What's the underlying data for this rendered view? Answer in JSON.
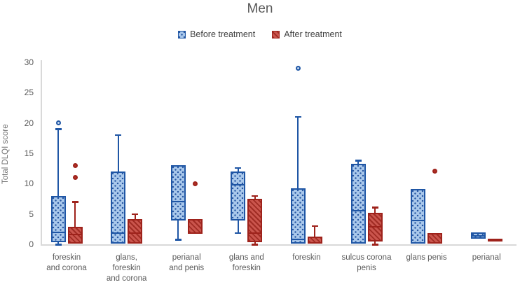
{
  "title": "Men",
  "colors": {
    "before_border": "#1F56A5",
    "before_fill": "#A9C8EB",
    "before_dot": "#2A59A3",
    "after_border": "#9E221B",
    "after_fill": "#CA554D",
    "after_stripe": "#A02C24",
    "title_gray": "#595959",
    "label_gray": "#595959",
    "legend_text": "#404040",
    "axis_gray": "#D9D9D9"
  },
  "chart_data": {
    "type": "boxplot",
    "title": "Men",
    "xlabel": "",
    "ylabel": "Total DLQI score",
    "ylim": [
      0,
      30
    ],
    "y_ticks": [
      0,
      5,
      10,
      15,
      20,
      25,
      30
    ],
    "grid": false,
    "legend_position": "top",
    "categories": [
      "foreskin and corona",
      "glans, foreskin and corona",
      "perianal and penis",
      "glans and foreskin",
      "foreskin",
      "sulcus corona penis",
      "glans penis",
      "perianal"
    ],
    "category_labels": [
      "foreskin\nand corona",
      "glans,\nforeskin\nand corona",
      "perianal\nand penis",
      "glans and\nforeskin",
      "foreskin",
      "sulcus corona\npenis",
      "glans penis",
      "perianal"
    ],
    "series": [
      {
        "name": "Before treatment",
        "pattern": "dots",
        "color": "#1F56A5",
        "fill": "#A9C8EB",
        "boxes": [
          {
            "q1": 0.3,
            "median": 2,
            "q3": 7.9,
            "whisker_low": 0,
            "whisker_high": 19,
            "outliers": [
              20
            ]
          },
          {
            "q1": 0.1,
            "median": 1.9,
            "q3": 12,
            "whisker_low": null,
            "whisker_high": 18,
            "outliers": []
          },
          {
            "q1": 3.9,
            "median": 7,
            "q3": 13,
            "whisker_low": 0.8,
            "whisker_high": null,
            "outliers": []
          },
          {
            "q1": 3.9,
            "median": 9.8,
            "q3": 12,
            "whisker_low": 1.9,
            "whisker_high": 12.6,
            "outliers": []
          },
          {
            "q1": 0.1,
            "median": 0.8,
            "q3": 9.2,
            "whisker_low": null,
            "whisker_high": 21,
            "outliers": [
              29
            ]
          },
          {
            "q1": 0.1,
            "median": 5.5,
            "q3": 13.3,
            "whisker_low": null,
            "whisker_high": 13.8,
            "outliers": []
          },
          {
            "q1": 0.1,
            "median": 3.9,
            "q3": 9.1,
            "whisker_low": null,
            "whisker_high": null,
            "outliers": []
          },
          {
            "q1": 0.9,
            "median": 1.4,
            "q3": 2,
            "whisker_low": null,
            "whisker_high": null,
            "outliers": []
          }
        ]
      },
      {
        "name": "After treatment",
        "pattern": "diagonal-stripes",
        "color": "#9E221B",
        "fill": "#CA554D",
        "boxes": [
          {
            "q1": 0.1,
            "median": 1.6,
            "q3": 2.9,
            "whisker_low": null,
            "whisker_high": 7,
            "outliers": [
              11,
              13
            ]
          },
          {
            "q1": 0.1,
            "median": 1.8,
            "q3": 4.1,
            "whisker_low": null,
            "whisker_high": 5,
            "outliers": []
          },
          {
            "q1": 1.7,
            "median": null,
            "q3": 4.2,
            "whisker_low": null,
            "whisker_high": null,
            "outliers": [
              10
            ]
          },
          {
            "q1": 0.4,
            "median": 1.8,
            "q3": 7.5,
            "whisker_low": 0,
            "whisker_high": 8,
            "outliers": []
          },
          {
            "q1": 0.1,
            "median": null,
            "q3": 1.25,
            "whisker_low": null,
            "whisker_high": 3,
            "outliers": []
          },
          {
            "q1": 0.5,
            "median": 2.9,
            "q3": 5.2,
            "whisker_low": 0,
            "whisker_high": 6.1,
            "outliers": []
          },
          {
            "q1": 0.1,
            "median": null,
            "q3": 1.9,
            "whisker_low": null,
            "whisker_high": null,
            "outliers": [
              12
            ]
          },
          {
            "q1": 0.75,
            "median": null,
            "q3": 0.95,
            "whisker_low": null,
            "whisker_high": null,
            "outliers": []
          }
        ]
      }
    ]
  }
}
